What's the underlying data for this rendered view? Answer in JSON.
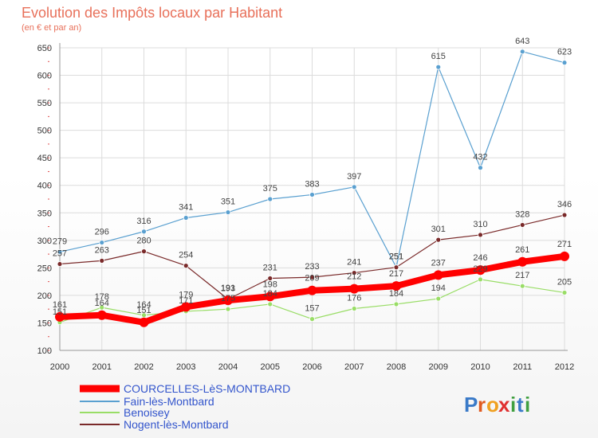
{
  "chart_data": {
    "type": "line",
    "title": "Evolution des Impôts locaux par Habitant",
    "subtitle": "(en € et par an)",
    "categories": [
      "2000",
      "2001",
      "2002",
      "2003",
      "2004",
      "2005",
      "2006",
      "2007",
      "2008",
      "2009",
      "2010",
      "2011",
      "2012"
    ],
    "y_ticks": [
      100,
      150,
      200,
      250,
      300,
      350,
      400,
      450,
      500,
      550,
      600,
      650
    ],
    "ylim": [
      100,
      650
    ],
    "grid": true,
    "legend_position": "bottom-left",
    "series": [
      {
        "name": "COURCELLES-LèS-MONTBARD",
        "color": "#ff0000",
        "values": [
          161,
          164,
          151,
          179,
          191,
          198,
          209,
          212,
          217,
          237,
          246,
          261,
          271
        ]
      },
      {
        "name": "Fain-lès-Montbard",
        "color": "#5aa0d0",
        "values": [
          279,
          296,
          316,
          341,
          351,
          375,
          383,
          397,
          251,
          615,
          432,
          643,
          623
        ]
      },
      {
        "name": "Benoisey",
        "color": "#99dd66",
        "values": [
          151,
          178,
          164,
          171,
          175,
          184,
          157,
          176,
          184,
          194,
          229,
          217,
          205
        ]
      },
      {
        "name": "Nogent-lès-Montbard",
        "color": "#7a2a2a",
        "values": [
          257,
          263,
          280,
          254,
          193,
          231,
          233,
          241,
          251,
          301,
          310,
          328,
          346
        ]
      }
    ]
  },
  "logo": {
    "text": "Proxiti",
    "letters": [
      {
        "ch": "P",
        "color": "#3a7ac8"
      },
      {
        "ch": "r",
        "color": "#e05a20"
      },
      {
        "ch": "o",
        "color": "#f0a020"
      },
      {
        "ch": "x",
        "color": "#e03030"
      },
      {
        "ch": "i",
        "color": "#40a040"
      },
      {
        "ch": "t",
        "color": "#3a7ac8"
      },
      {
        "ch": "i",
        "color": "#40a040"
      }
    ]
  }
}
